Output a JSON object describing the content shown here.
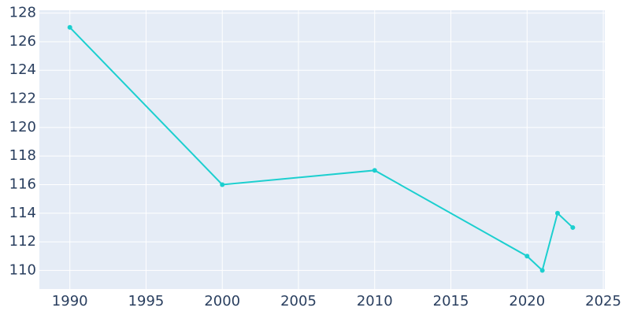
{
  "chart_data": {
    "type": "line",
    "x": [
      1990,
      2000,
      2010,
      2020,
      2021,
      2022,
      2023
    ],
    "series": [
      {
        "color": "#1ccfcf",
        "values": [
          127,
          116,
          117,
          111,
          110,
          114,
          113
        ]
      }
    ],
    "xlim": [
      1988,
      2025.1
    ],
    "xticks": [
      1990,
      1995,
      2000,
      2005,
      2010,
      2015,
      2020,
      2025
    ],
    "ylim": [
      108.7,
      128.2
    ],
    "yticks": [
      110,
      112,
      114,
      116,
      118,
      120,
      122,
      124,
      126,
      128
    ],
    "grid": true
  }
}
